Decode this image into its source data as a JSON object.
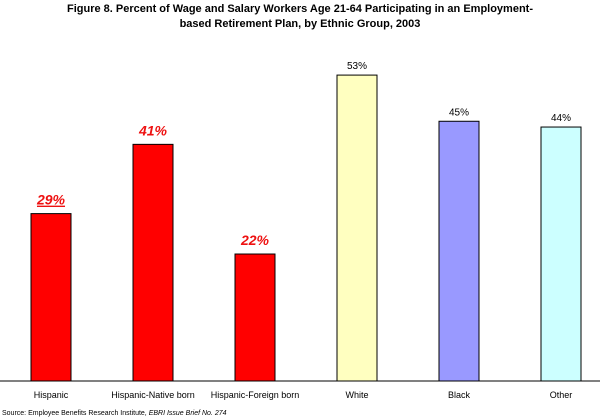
{
  "chart_data": {
    "type": "bar",
    "title_line1": "Figure 8. Percent of Wage and Salary Workers Age 21-64 Participating in an Employment-",
    "title_line2": "based Retirement Plan, by Ethnic Group, 2003",
    "categories": [
      "Hispanic",
      "Hispanic-Native born",
      "Hispanic-Foreign born",
      "White",
      "Black",
      "Other"
    ],
    "values": [
      29,
      41,
      22,
      53,
      45,
      44
    ],
    "value_labels": [
      "29%",
      "41%",
      "22%",
      "53%",
      "45%",
      "44%"
    ],
    "bar_colors": [
      "#ff0000",
      "#ff0000",
      "#ff0000",
      "#ffffc0",
      "#9999ff",
      "#ccffff"
    ],
    "highlight_labels": [
      true,
      true,
      true,
      false,
      false,
      false
    ],
    "underline_labels": [
      true,
      false,
      false,
      false,
      false,
      false
    ],
    "label_color_highlight": "#ee1111",
    "ylim": [
      0,
      57
    ],
    "grid": false,
    "xlabel": "",
    "ylabel": ""
  },
  "source": {
    "prefix": "Source: Employee Benefits Research Institute, ",
    "italic": "EBRI Issue Brief No. 274"
  }
}
